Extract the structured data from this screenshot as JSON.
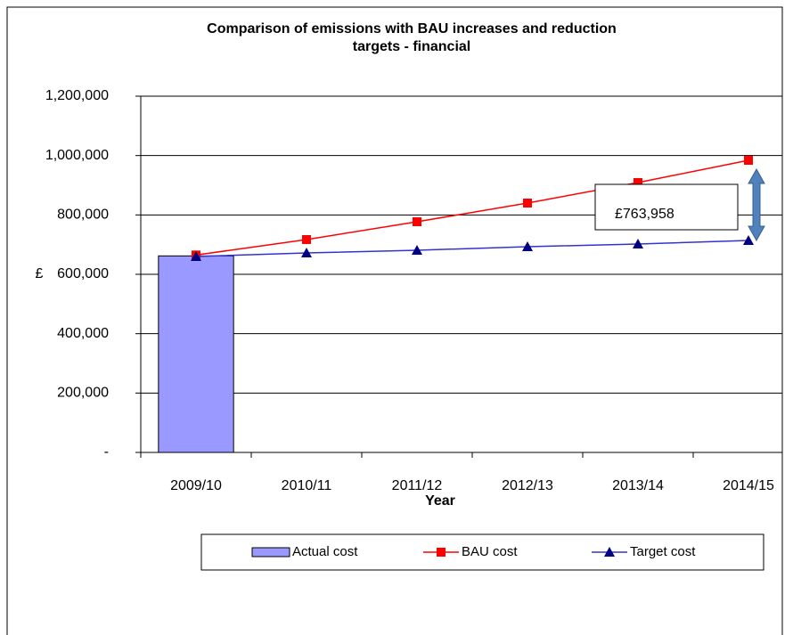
{
  "chart_data": {
    "type": "combo",
    "title": [
      "Comparison of emissions with BAU increases and reduction",
      "targets - financial"
    ],
    "x_label": "Year",
    "y_label": "£",
    "annotation": "£763,958",
    "categories": [
      "2009/10",
      "2010/11",
      "2011/12",
      "2012/13",
      "2013/14",
      "2014/15"
    ],
    "series": [
      {
        "name": "Actual cost",
        "type": "bar",
        "color": "#9999ff",
        "values": [
          662000,
          null,
          null,
          null,
          null,
          null
        ]
      },
      {
        "name": "BAU cost",
        "type": "line",
        "marker": "square",
        "color": "#ff0000",
        "marker_color": "#ff0000",
        "values": [
          665000,
          717000,
          777000,
          840000,
          909000,
          984000
        ]
      },
      {
        "name": "Target cost",
        "type": "line",
        "marker": "triangle",
        "color": "#3333cc",
        "marker_color": "#000080",
        "values": [
          660000,
          672000,
          681000,
          693000,
          702000,
          714000
        ]
      }
    ],
    "ylim": [
      0,
      1200000
    ],
    "yticks": [
      {
        "value": 0,
        "label": "-"
      },
      {
        "value": 200000,
        "label": "200,000"
      },
      {
        "value": 400000,
        "label": "400,000"
      },
      {
        "value": 600000,
        "label": "600,000"
      },
      {
        "value": 800000,
        "label": "800,000"
      },
      {
        "value": 1000000,
        "label": "1,000,000"
      },
      {
        "value": 1200000,
        "label": "1,200,000"
      }
    ],
    "grid": true,
    "legend": "bottom"
  }
}
